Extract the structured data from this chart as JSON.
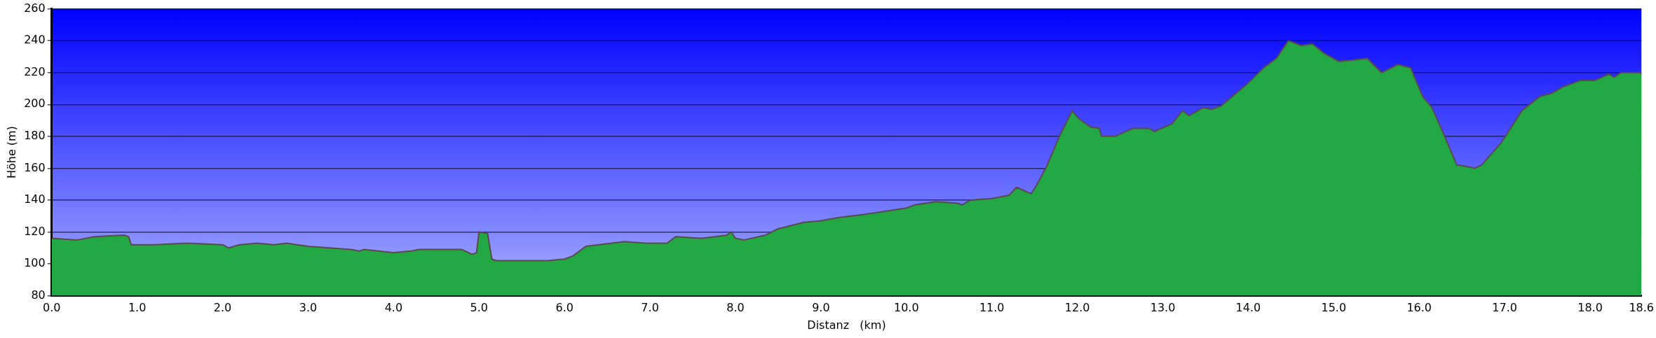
{
  "chart_data": {
    "type": "area",
    "xlabel": "Distanz   (km)",
    "ylabel": "Höhe (m)",
    "xlim": [
      0,
      18.6
    ],
    "ylim": [
      80,
      260
    ],
    "xticks": [
      {
        "value": 0,
        "label": "0.0"
      },
      {
        "value": 1,
        "label": "1.0"
      },
      {
        "value": 2,
        "label": "2.0"
      },
      {
        "value": 3,
        "label": "3.0"
      },
      {
        "value": 4,
        "label": "4.0"
      },
      {
        "value": 5,
        "label": "5.0"
      },
      {
        "value": 6,
        "label": "6.0"
      },
      {
        "value": 7,
        "label": "7.0"
      },
      {
        "value": 8,
        "label": "8.0"
      },
      {
        "value": 9,
        "label": "9.0"
      },
      {
        "value": 10,
        "label": "10.0"
      },
      {
        "value": 11,
        "label": "11.0"
      },
      {
        "value": 12,
        "label": "12.0"
      },
      {
        "value": 13,
        "label": "13.0"
      },
      {
        "value": 14,
        "label": "14.0"
      },
      {
        "value": 15,
        "label": "15.0"
      },
      {
        "value": 16,
        "label": "16.0"
      },
      {
        "value": 17,
        "label": "17.0"
      },
      {
        "value": 18,
        "label": "18.0"
      },
      {
        "value": 18.6,
        "label": "18.6"
      }
    ],
    "yticks": [
      80,
      100,
      120,
      140,
      160,
      180,
      200,
      220,
      240,
      260
    ],
    "grid": "y",
    "legend": false,
    "marker": "none",
    "line_style": "solid",
    "series": [
      {
        "color": "#22a845",
        "x": [
          0,
          0.3,
          0.5,
          0.85,
          0.9,
          0.93,
          1.2,
          1.6,
          2.0,
          2.07,
          2.2,
          2.4,
          2.6,
          2.75,
          3.0,
          3.5,
          3.6,
          3.65,
          4.0,
          4.2,
          4.3,
          4.5,
          4.8,
          4.92,
          4.97,
          5.0,
          5.1,
          5.15,
          5.2,
          5.5,
          5.8,
          6.0,
          6.1,
          6.25,
          6.4,
          6.7,
          6.95,
          7.2,
          7.3,
          7.6,
          7.9,
          7.95,
          8.0,
          8.1,
          8.35,
          8.5,
          8.8,
          9.0,
          9.2,
          9.5,
          10.0,
          10.1,
          10.35,
          10.6,
          10.65,
          10.75,
          11.0,
          11.2,
          11.29,
          11.46,
          11.52,
          11.64,
          11.79,
          11.94,
          12.02,
          12.15,
          12.26,
          12.28,
          12.44,
          12.65,
          12.84,
          12.9,
          13.11,
          13.23,
          13.31,
          13.47,
          13.57,
          13.68,
          13.99,
          14.18,
          14.33,
          14.47,
          14.62,
          14.75,
          14.89,
          15.06,
          15.25,
          15.39,
          15.56,
          15.75,
          15.9,
          16.04,
          16.15,
          16.29,
          16.44,
          16.56,
          16.65,
          16.73,
          16.96,
          17.2,
          17.41,
          17.55,
          17.68,
          17.88,
          18.05,
          18.22,
          18.28,
          18.36,
          18.59,
          18.6
        ],
        "values": [
          116,
          115,
          117,
          118,
          117,
          112,
          112,
          113,
          112,
          110,
          112,
          113,
          112,
          113,
          111,
          109,
          108,
          109,
          107,
          108,
          109,
          109,
          109,
          106,
          107,
          120,
          119,
          103,
          102,
          102,
          102,
          103,
          105,
          111,
          112,
          114,
          113,
          113,
          117,
          116,
          118,
          120,
          116,
          115,
          118,
          122,
          126,
          127,
          129,
          131,
          135,
          137,
          139,
          138,
          137,
          140,
          141,
          143,
          148,
          144,
          149,
          161,
          180,
          196,
          191,
          186,
          185,
          180,
          180,
          185,
          185,
          183,
          188,
          196,
          193,
          198,
          197,
          199,
          213,
          223,
          229,
          240,
          237,
          238,
          232,
          227,
          228,
          229,
          220,
          225,
          223,
          205,
          198,
          181,
          162,
          161,
          160,
          162,
          176,
          196,
          205,
          207,
          211,
          215,
          215,
          219,
          217,
          220,
          220,
          219
        ]
      }
    ]
  }
}
